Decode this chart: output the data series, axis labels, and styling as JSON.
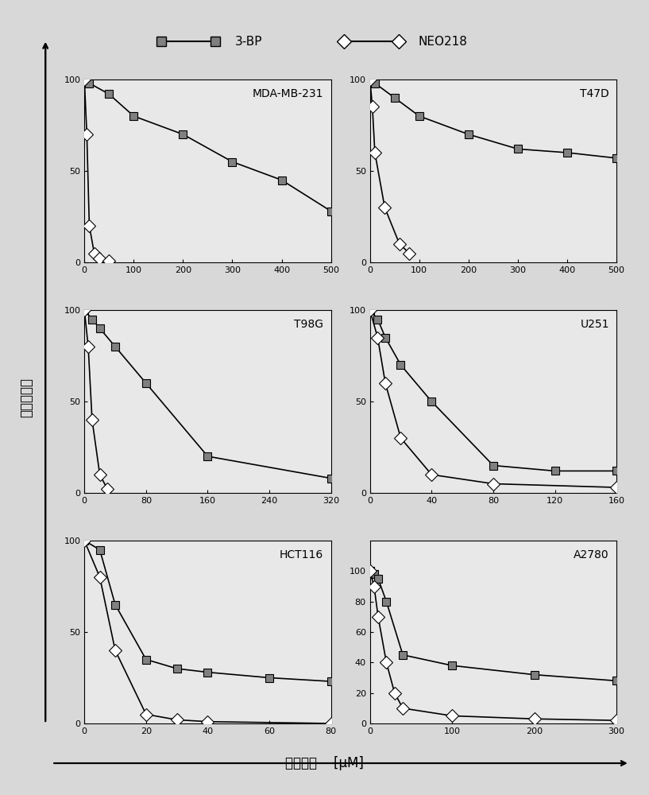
{
  "subplots": [
    {
      "title": "MDA-MB-231",
      "xlim": [
        0,
        500
      ],
      "xticks": [
        0,
        100,
        200,
        300,
        400,
        500
      ],
      "ylim": [
        0,
        100
      ],
      "yticks": [
        0,
        50,
        100
      ],
      "bp_x": [
        0,
        10,
        50,
        100,
        200,
        300,
        400,
        500
      ],
      "bp_y": [
        100,
        98,
        92,
        80,
        70,
        55,
        45,
        28
      ],
      "neo_x": [
        0,
        5,
        10,
        20,
        30,
        50
      ],
      "neo_y": [
        100,
        70,
        20,
        5,
        2,
        1
      ]
    },
    {
      "title": "T47D",
      "xlim": [
        0,
        500
      ],
      "xticks": [
        0,
        100,
        200,
        300,
        400,
        500
      ],
      "ylim": [
        0,
        100
      ],
      "yticks": [
        0,
        50,
        100
      ],
      "bp_x": [
        0,
        10,
        50,
        100,
        200,
        300,
        400,
        500
      ],
      "bp_y": [
        100,
        98,
        90,
        80,
        70,
        62,
        60,
        57
      ],
      "neo_x": [
        0,
        5,
        10,
        30,
        60,
        80
      ],
      "neo_y": [
        100,
        85,
        60,
        30,
        10,
        5
      ]
    },
    {
      "title": "T98G",
      "xlim": [
        0,
        320
      ],
      "xticks": [
        0,
        80,
        160,
        240,
        320
      ],
      "ylim": [
        0,
        100
      ],
      "yticks": [
        0,
        50,
        100
      ],
      "bp_x": [
        0,
        10,
        20,
        40,
        80,
        160,
        320
      ],
      "bp_y": [
        100,
        95,
        90,
        80,
        60,
        20,
        8
      ],
      "neo_x": [
        0,
        5,
        10,
        20,
        30
      ],
      "neo_y": [
        100,
        80,
        40,
        10,
        2
      ]
    },
    {
      "title": "U251",
      "xlim": [
        0,
        160
      ],
      "xticks": [
        0,
        40,
        80,
        120,
        160
      ],
      "ylim": [
        0,
        100
      ],
      "yticks": [
        0,
        50,
        100
      ],
      "bp_x": [
        0,
        5,
        10,
        20,
        40,
        80,
        120,
        160
      ],
      "bp_y": [
        100,
        95,
        85,
        70,
        50,
        15,
        12,
        12
      ],
      "neo_x": [
        0,
        5,
        10,
        20,
        40,
        80,
        160
      ],
      "neo_y": [
        100,
        85,
        60,
        30,
        10,
        5,
        3
      ]
    },
    {
      "title": "HCT116",
      "xlim": [
        0,
        80
      ],
      "xticks": [
        0,
        20,
        40,
        60,
        80
      ],
      "ylim": [
        0,
        100
      ],
      "yticks": [
        0,
        50,
        100
      ],
      "bp_x": [
        0,
        5,
        10,
        20,
        30,
        40,
        60,
        80
      ],
      "bp_y": [
        100,
        95,
        65,
        35,
        30,
        28,
        25,
        23
      ],
      "neo_x": [
        0,
        5,
        10,
        20,
        30,
        40,
        80
      ],
      "neo_y": [
        100,
        80,
        40,
        5,
        2,
        1,
        0
      ]
    },
    {
      "title": "A2780",
      "xlim": [
        0,
        300
      ],
      "xticks": [
        0,
        100,
        200,
        300
      ],
      "ylim": [
        0,
        120
      ],
      "yticks": [
        0,
        20,
        40,
        60,
        80,
        100
      ],
      "bp_x": [
        0,
        5,
        10,
        20,
        40,
        100,
        200,
        300
      ],
      "bp_y": [
        100,
        98,
        95,
        80,
        45,
        38,
        32,
        28
      ],
      "neo_x": [
        0,
        5,
        10,
        20,
        30,
        40,
        100,
        200,
        300
      ],
      "neo_y": [
        100,
        90,
        70,
        40,
        20,
        10,
        5,
        3,
        2
      ]
    }
  ],
  "ylabel": "细胞存活率",
  "xlabel": "药物浓度    [μM]",
  "bp_color": "#808080",
  "neo_color": "#606060",
  "bg_color": "#e8e8e8",
  "legend_bg": "#d0d0d0",
  "fig_bg": "#d8d8d8"
}
